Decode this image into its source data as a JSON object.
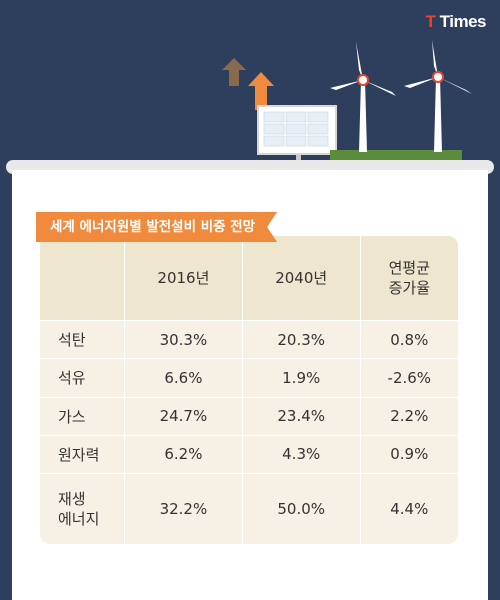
{
  "brand": {
    "prefix": "T",
    "name": "Times"
  },
  "title": "세계 에너지원별 발전설비 비중 전망",
  "table": {
    "headers": [
      "",
      "2016년",
      "2040년",
      "연평균\n증가율"
    ],
    "rows": [
      {
        "label": "석탄",
        "y2016": "30.3%",
        "y2040": "20.3%",
        "growth": "0.8%"
      },
      {
        "label": "석유",
        "y2016": "6.6%",
        "y2040": "1.9%",
        "growth": "-2.6%"
      },
      {
        "label": "가스",
        "y2016": "24.7%",
        "y2040": "23.4%",
        "growth": "2.2%"
      },
      {
        "label": "원자력",
        "y2016": "6.2%",
        "y2040": "4.3%",
        "growth": "0.9%"
      },
      {
        "label": "재생\n에너지",
        "y2016": "32.2%",
        "y2040": "50.0%",
        "growth": "4.4%"
      }
    ]
  },
  "colors": {
    "background": "#2e3f5e",
    "accent": "#f08a3c",
    "table_header": "#efe6cf",
    "table_body": "#f6f1e4",
    "grass": "#5a8c3c"
  },
  "icons": [
    "arrow-up-brown-icon",
    "arrow-up-orange-icon",
    "solar-panel-icon",
    "wind-turbine-icon"
  ]
}
